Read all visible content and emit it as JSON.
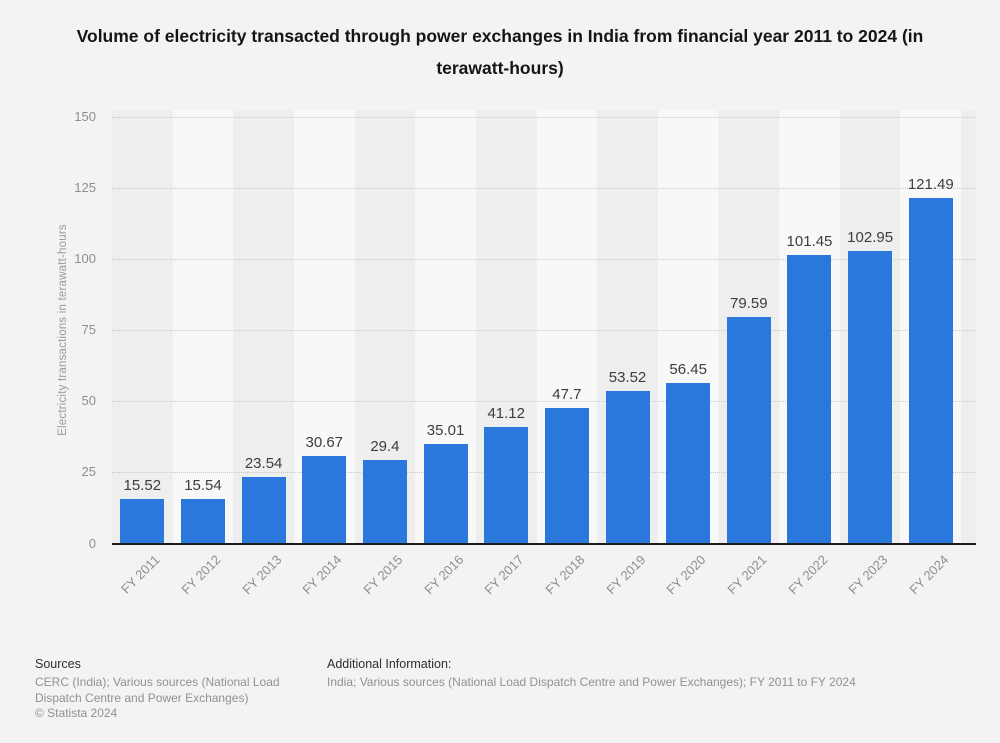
{
  "title": "Volume of electricity transacted through power exchanges in India from financial year 2011 to 2024 (in terawatt-hours)",
  "chart_data": {
    "type": "bar",
    "categories": [
      "FY 2011",
      "FY 2012",
      "FY 2013",
      "FY 2014",
      "FY 2015",
      "FY 2016",
      "FY 2017",
      "FY 2018",
      "FY 2019",
      "FY 2020",
      "FY 2021",
      "FY 2022",
      "FY 2023",
      "FY 2024"
    ],
    "values": [
      15.52,
      15.54,
      23.54,
      30.67,
      29.4,
      35.01,
      41.12,
      47.7,
      53.52,
      56.45,
      79.59,
      101.45,
      102.95,
      121.49
    ],
    "title": "Volume of electricity transacted through power exchanges in India from financial year 2011 to 2024 (in terawatt-hours)",
    "xlabel": "",
    "ylabel": "Electricity transactions in terawatt-hours",
    "ylim": [
      0,
      150
    ],
    "y_ticks": [
      0,
      25,
      50,
      75,
      100,
      125,
      150
    ],
    "grid": "horizontal-dotted",
    "legend": "none",
    "bar_color": "#2b78dd"
  },
  "footer": {
    "sources_label": "Sources",
    "sources_text": "CERC (India); Various sources (National Load Dispatch Centre and Power Exchanges)",
    "copyright": "© Statista 2024",
    "additional_label": "Additional Information:",
    "additional_text": "India; Various sources (National Load Dispatch Centre and Power Exchanges); FY 2011 to FY 2024"
  },
  "colors": {
    "background": "#f3f3f3",
    "stripe_dark": "#eeeeee",
    "stripe_light": "#f8f8f8",
    "bar": "#2b78dd",
    "gridline": "#c9c9c9",
    "axis_line": "#1c1c1c",
    "title_text": "#151515",
    "tick_text": "#8e8e8e",
    "value_label_text": "#3d3d3d",
    "footer_label_text": "#2e2e2e",
    "footer_body_text": "#919191"
  }
}
